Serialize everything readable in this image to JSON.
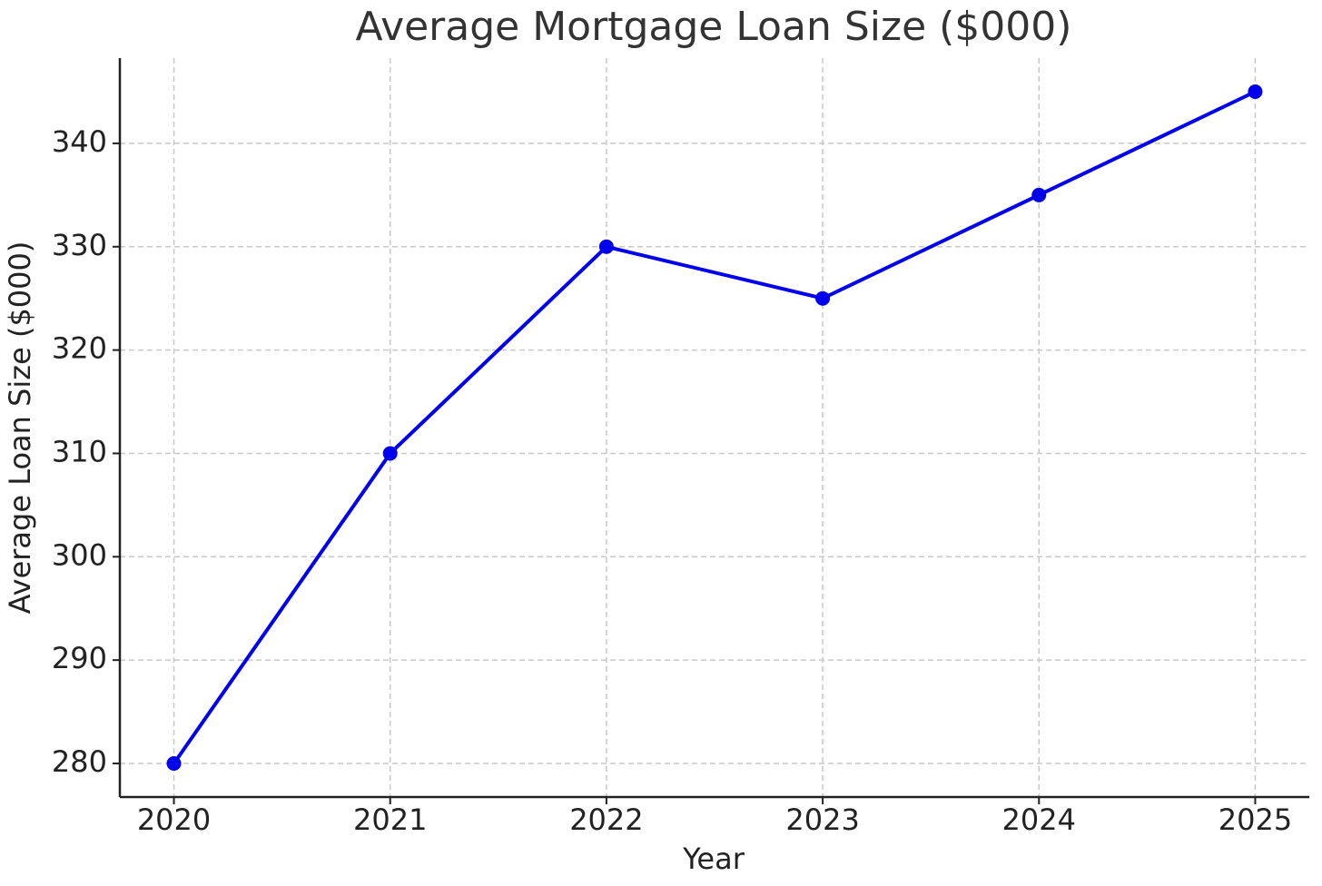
{
  "chart_data": {
    "type": "line",
    "title": "Average Mortgage Loan Size ($000)",
    "x_label": "Year",
    "y_label": "Average Loan Size ($000)",
    "x": [
      2020,
      2021,
      2022,
      2023,
      2024,
      2025
    ],
    "series": [
      {
        "name": "Average Loan Size",
        "color": "#0000ee",
        "values": [
          280,
          310,
          330,
          325,
          335,
          345
        ]
      }
    ],
    "xlim": [
      2019.75,
      2025.25
    ],
    "xticks": [
      2020,
      2021,
      2022,
      2023,
      2024,
      2025
    ],
    "ylim": [
      276.75,
      348.25
    ],
    "yticks": [
      280,
      290,
      300,
      310,
      320,
      330,
      340
    ],
    "grid": true,
    "legend": false
  }
}
